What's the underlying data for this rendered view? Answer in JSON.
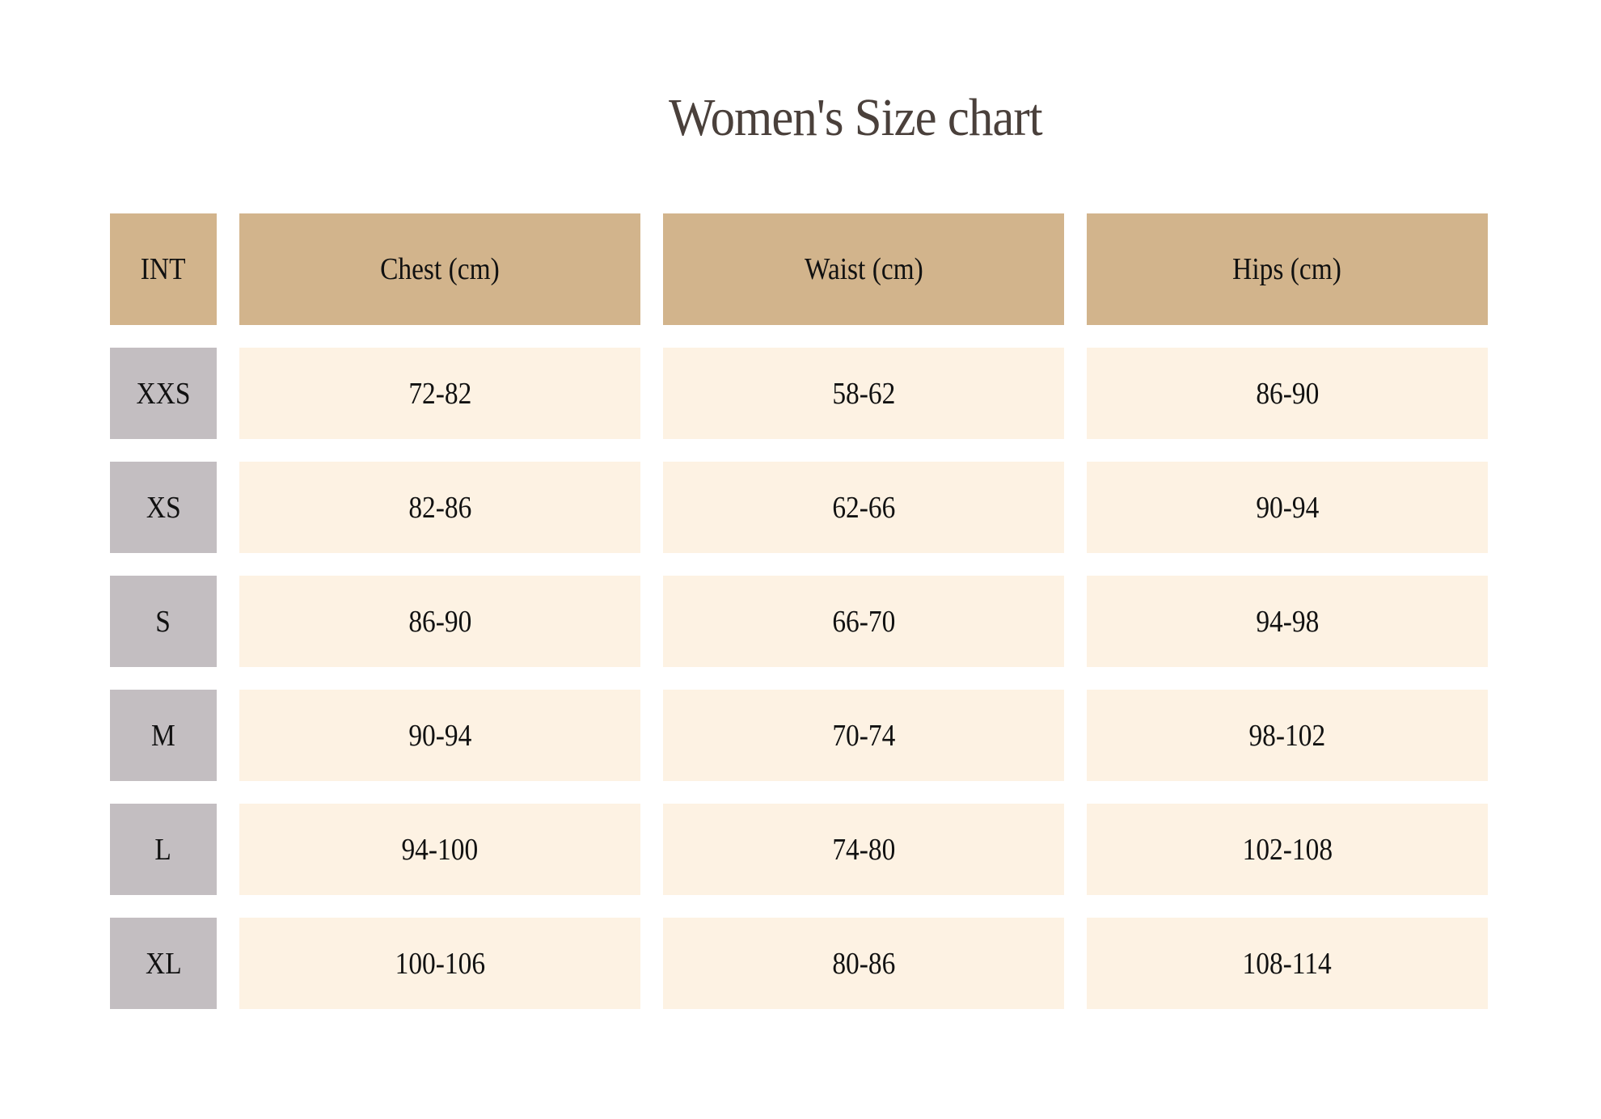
{
  "title": "Women's Size chart",
  "colors": {
    "header": "#d2b48c",
    "size_cell": "#c3bec1",
    "value_cell": "#fdf2e3",
    "title": "#4a403b"
  },
  "headers": [
    "INT",
    "Chest (cm)",
    "Waist (cm)",
    "Hips (cm)"
  ],
  "rows": [
    [
      "XXS",
      "72-82",
      "58-62",
      "86-90"
    ],
    [
      "XS",
      "82-86",
      "62-66",
      "90-94"
    ],
    [
      "S",
      "86-90",
      "66-70",
      "94-98"
    ],
    [
      "M",
      "90-94",
      "70-74",
      "98-102"
    ],
    [
      "L",
      "94-100",
      "74-80",
      "102-108"
    ],
    [
      "XL",
      "100-106",
      "80-86",
      "108-114"
    ]
  ]
}
